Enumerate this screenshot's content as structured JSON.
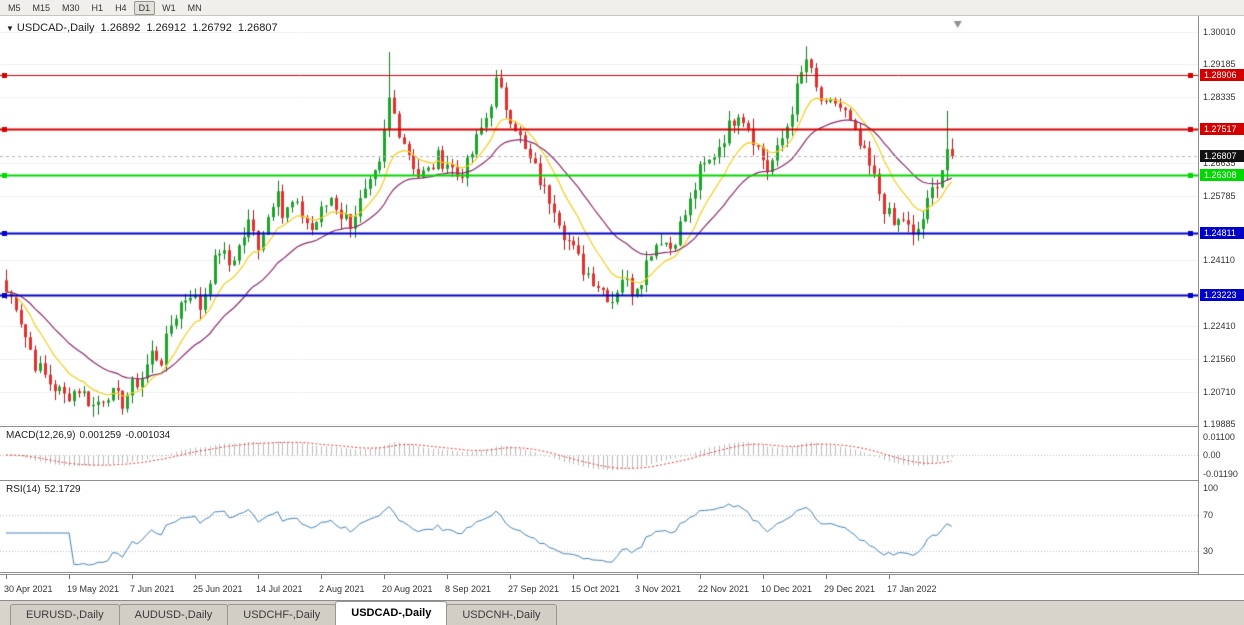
{
  "toolbar": {
    "timeframes": [
      "M5",
      "M15",
      "M30",
      "H1",
      "H4",
      "D1",
      "W1",
      "MN"
    ],
    "active": "D1"
  },
  "chart": {
    "title": {
      "collapse_icon": "▼",
      "symbol": "USDCAD-,Daily",
      "open": "1.26892",
      "high": "1.26912",
      "low": "1.26792",
      "close": "1.26807"
    }
  },
  "macd": {
    "label": "MACD(12,26,9)",
    "value_main": "0.001259",
    "value_signal": "-0.001034",
    "axis_labels": [
      {
        "text": "0.01100",
        "value": 0.011
      },
      {
        "text": "0.00",
        "value": 0
      },
      {
        "text": "-0.01190",
        "value": -0.0119
      }
    ]
  },
  "rsi": {
    "label": "RSI(14)",
    "value": "52.1729",
    "axis_labels": [
      {
        "text": "100",
        "value": 100
      },
      {
        "text": "70",
        "value": 70
      },
      {
        "text": "30",
        "value": 30
      }
    ],
    "levels": [
      70,
      30
    ]
  },
  "tabs": {
    "items": [
      {
        "label": "EURUSD-,Daily",
        "active": false
      },
      {
        "label": "AUDUSD-,Daily",
        "active": false
      },
      {
        "label": "USDCHF-,Daily",
        "active": false
      },
      {
        "label": "USDCAD-,Daily",
        "active": true
      },
      {
        "label": "USDCNH-,Daily",
        "active": false
      }
    ]
  },
  "colors": {
    "up_candle": "#1FA32E",
    "up_border": "#0E7C1C",
    "down_candle": "#E0312E",
    "down_border": "#A81E1B",
    "ma_fast": "#F2CE1B",
    "ma_slow": "#8B2E6B",
    "grid": "#F0F0F0",
    "bid_line": "#B4B4B4",
    "current_badge": "#111111",
    "macd_hist": "#BBBBBB",
    "macd_signal": "#E03C3C",
    "rsi_line": "#4682B4",
    "level_dotted": "#BBBBBB",
    "end_marker": "#909090"
  },
  "chart_data": {
    "type": "candlestick",
    "symbol": "USDCAD-",
    "timeframe": "Daily",
    "count": 196,
    "current_price": {
      "value": 1.26807,
      "label": "1.26807"
    },
    "y_axis": {
      "min": 1.19885,
      "max": 1.3001,
      "labels": [
        {
          "text": "1.30010",
          "value": 1.3001
        },
        {
          "text": "1.29185",
          "value": 1.29185
        },
        {
          "text": "1.28335",
          "value": 1.28335
        },
        {
          "text": "1.26635",
          "value": 1.26635
        },
        {
          "text": "1.25785",
          "value": 1.25785
        },
        {
          "text": "1.24110",
          "value": 1.2411
        },
        {
          "text": "1.22410",
          "value": 1.2241
        },
        {
          "text": "1.21560",
          "value": 1.2156
        },
        {
          "text": "1.20710",
          "value": 1.2071
        },
        {
          "text": "1.19885",
          "value": 1.19885
        }
      ]
    },
    "hlines": [
      {
        "value": 1.28906,
        "label": "1.28906",
        "color": "#D40000",
        "width": 1,
        "badge": true,
        "markers": true
      },
      {
        "value": 1.27517,
        "label": "1.27517",
        "color": "#D40000",
        "width": 2,
        "badge": true,
        "markers": true
      },
      {
        "value": 1.26308,
        "label": "1.26308",
        "color": "#00D800",
        "width": 2,
        "badge": true,
        "markers": true
      },
      {
        "value": 1.24811,
        "label": "1.24811",
        "color": "#0000C8",
        "width": 2,
        "badge": true,
        "markers": true
      },
      {
        "value": 1.23223,
        "label": "1.23223",
        "color": "#0000C8",
        "width": 2,
        "badge": true,
        "markers": true
      }
    ],
    "x_labels": [
      "30 Apr 2021",
      "19 May 2021",
      "7 Jun 2021",
      "25 Jun 2021",
      "14 Jul 2021",
      "2 Aug 2021",
      "20 Aug 2021",
      "8 Sep 2021",
      "27 Sep 2021",
      "15 Oct 2021",
      "3 Nov 2021",
      "22 Nov 2021",
      "10 Dec 2021",
      "29 Dec 2021",
      "17 Jan 2022"
    ],
    "candles_per_label": 13,
    "close_anchors": [
      [
        0,
        1.233
      ],
      [
        2,
        1.23
      ],
      [
        4,
        1.2215
      ],
      [
        6,
        1.2145
      ],
      [
        9,
        1.2095
      ],
      [
        12,
        1.206
      ],
      [
        15,
        1.208
      ],
      [
        18,
        1.2035
      ],
      [
        21,
        1.207
      ],
      [
        24,
        1.2045
      ],
      [
        26,
        1.2085
      ],
      [
        28,
        1.211
      ],
      [
        30,
        1.217
      ],
      [
        32,
        1.2155
      ],
      [
        34,
        1.2245
      ],
      [
        36,
        1.23
      ],
      [
        38,
        1.233
      ],
      [
        40,
        1.229
      ],
      [
        42,
        1.237
      ],
      [
        44,
        1.244
      ],
      [
        46,
        1.24
      ],
      [
        48,
        1.2445
      ],
      [
        50,
        1.2505
      ],
      [
        52,
        1.2455
      ],
      [
        54,
        1.2525
      ],
      [
        56,
        1.261
      ],
      [
        57,
        1.2525
      ],
      [
        59,
        1.2555
      ],
      [
        61,
        1.253
      ],
      [
        63,
        1.249
      ],
      [
        65,
        1.2535
      ],
      [
        67,
        1.2575
      ],
      [
        69,
        1.253
      ],
      [
        71,
        1.251
      ],
      [
        73,
        1.256
      ],
      [
        75,
        1.26
      ],
      [
        77,
        1.265
      ],
      [
        79,
        1.2825
      ],
      [
        81,
        1.275
      ],
      [
        83,
        1.269
      ],
      [
        85,
        1.263
      ],
      [
        87,
        1.264
      ],
      [
        89,
        1.2675
      ],
      [
        91,
        1.2665
      ],
      [
        93,
        1.263
      ],
      [
        95,
        1.2655
      ],
      [
        97,
        1.272
      ],
      [
        99,
        1.278
      ],
      [
        101,
        1.287
      ],
      [
        103,
        1.281
      ],
      [
        105,
        1.276
      ],
      [
        107,
        1.269
      ],
      [
        109,
        1.2645
      ],
      [
        111,
        1.259
      ],
      [
        113,
        1.2555
      ],
      [
        115,
        1.2485
      ],
      [
        117,
        1.2435
      ],
      [
        119,
        1.239
      ],
      [
        121,
        1.2365
      ],
      [
        123,
        1.2335
      ],
      [
        125,
        1.231
      ],
      [
        127,
        1.237
      ],
      [
        129,
        1.2335
      ],
      [
        131,
        1.237
      ],
      [
        133,
        1.244
      ],
      [
        135,
        1.247
      ],
      [
        137,
        1.2445
      ],
      [
        139,
        1.25
      ],
      [
        141,
        1.256
      ],
      [
        143,
        1.264
      ],
      [
        145,
        1.2665
      ],
      [
        147,
        1.271
      ],
      [
        149,
        1.2755
      ],
      [
        151,
        1.28
      ],
      [
        153,
        1.276
      ],
      [
        155,
        1.27
      ],
      [
        157,
        1.2645
      ],
      [
        159,
        1.269
      ],
      [
        161,
        1.276
      ],
      [
        163,
        1.285
      ],
      [
        165,
        1.293
      ],
      [
        167,
        1.285
      ],
      [
        169,
        1.28
      ],
      [
        171,
        1.282
      ],
      [
        173,
        1.279
      ],
      [
        175,
        1.273
      ],
      [
        177,
        1.268
      ],
      [
        179,
        1.262
      ],
      [
        181,
        1.255
      ],
      [
        183,
        1.25
      ],
      [
        185,
        1.252
      ],
      [
        187,
        1.2465
      ],
      [
        189,
        1.252
      ],
      [
        191,
        1.259
      ],
      [
        193,
        1.265
      ],
      [
        194,
        1.27
      ],
      [
        195,
        1.26807
      ]
    ],
    "wick_overrides": [
      {
        "i": 18,
        "low": 1.2007
      },
      {
        "i": 79,
        "high": 1.2949
      },
      {
        "i": 101,
        "high": 1.2896
      },
      {
        "i": 125,
        "low": 1.2288
      },
      {
        "i": 165,
        "high": 1.2964
      },
      {
        "i": 187,
        "low": 1.245
      },
      {
        "i": 194,
        "high": 1.2797
      }
    ],
    "indicators": [
      {
        "name": "MA",
        "period": 10,
        "color_key": "ma_fast"
      },
      {
        "name": "MA",
        "period": 24,
        "color_key": "ma_slow"
      },
      {
        "name": "MACD",
        "params": [
          12,
          26,
          9
        ]
      },
      {
        "name": "RSI",
        "params": [
          14
        ]
      }
    ]
  }
}
